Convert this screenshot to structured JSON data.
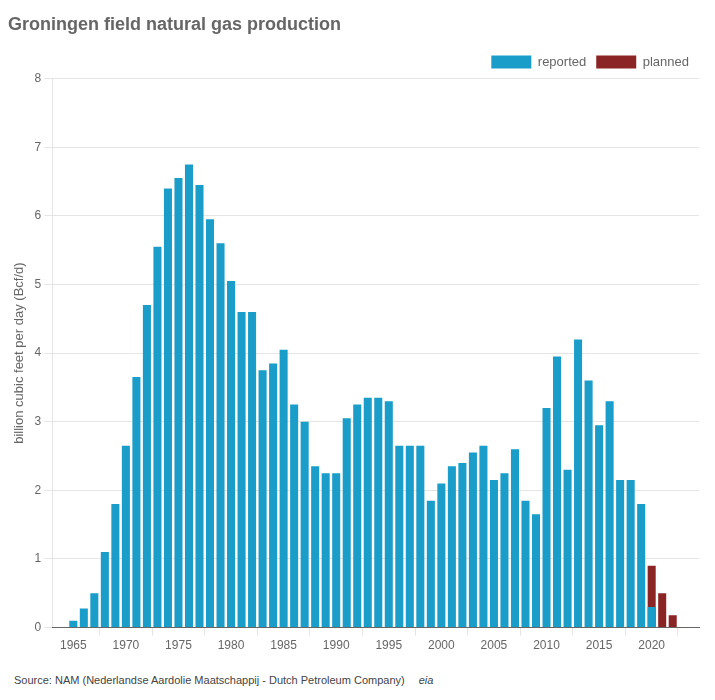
{
  "chart_data": {
    "type": "bar",
    "title": "Groningen field natural gas production",
    "ylabel": "billion cubic feet per day (Bcf/d)",
    "annotations": [
      "Source: NAM (Nederlandse Aardolie Maatschappij - Dutch Petroleum Company)",
      "eia"
    ],
    "series": [
      {
        "name": "reported",
        "color": "#1A9DC8",
        "x": [
          1965,
          1966,
          1967,
          1968,
          1969,
          1970,
          1971,
          1972,
          1973,
          1974,
          1975,
          1976,
          1977,
          1978,
          1979,
          1980,
          1981,
          1982,
          1983,
          1984,
          1985,
          1986,
          1987,
          1988,
          1989,
          1990,
          1991,
          1992,
          1993,
          1994,
          1995,
          1996,
          1997,
          1998,
          1999,
          2000,
          2001,
          2002,
          2003,
          2004,
          2005,
          2006,
          2007,
          2008,
          2009,
          2010,
          2011,
          2012,
          2013,
          2014,
          2015,
          2016,
          2017,
          2018,
          2019,
          2020
        ],
        "values": [
          0.1,
          0.28,
          0.5,
          1.1,
          1.8,
          2.65,
          3.65,
          4.7,
          5.55,
          6.4,
          6.55,
          6.75,
          6.45,
          5.95,
          5.6,
          5.05,
          4.6,
          4.6,
          3.75,
          3.85,
          4.05,
          3.25,
          3.0,
          2.35,
          2.25,
          2.25,
          3.05,
          3.25,
          3.35,
          3.35,
          3.3,
          2.65,
          2.65,
          2.65,
          1.85,
          2.1,
          2.35,
          2.4,
          2.55,
          2.65,
          2.15,
          2.25,
          2.6,
          1.85,
          1.65,
          3.2,
          3.95,
          2.3,
          4.2,
          3.6,
          2.95,
          3.3,
          2.15,
          2.15,
          1.8,
          0.3
        ]
      },
      {
        "name": "planned",
        "color": "#8B2525",
        "x": [
          2020,
          2021,
          2022
        ],
        "values": [
          0.9,
          0.5,
          0.18
        ]
      }
    ],
    "xlim": [
      1963.0,
      2024.5
    ],
    "xticks": [
      1965,
      1970,
      1975,
      1980,
      1985,
      1990,
      1995,
      2000,
      2005,
      2010,
      2015,
      2020
    ],
    "ylim": [
      0,
      8
    ],
    "yticks": [
      0,
      1,
      2,
      3,
      4,
      5,
      6,
      7,
      8
    ],
    "grid": true,
    "legend": "top"
  }
}
